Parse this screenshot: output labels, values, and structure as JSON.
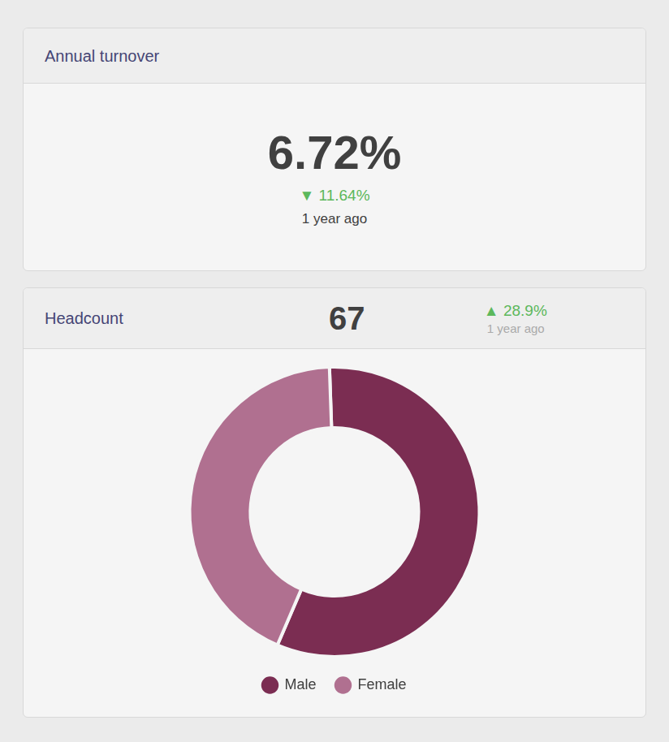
{
  "chart_data": {
    "type": "doughnut",
    "title": "Headcount",
    "categories": [
      "Male",
      "Female"
    ],
    "values": [
      57,
      43
    ],
    "colors": [
      "#7b2d52",
      "#b07090"
    ],
    "legend": "bottom",
    "annotations": [
      {
        "text": "Annual turnover"
      },
      {
        "text": "6.72%"
      },
      {
        "text": "▼ 11.64%",
        "color": "#5cb85c"
      },
      {
        "text": "1 year ago"
      },
      {
        "text": "67"
      },
      {
        "text": "▲ 28.9%",
        "color": "#5cb85c"
      },
      {
        "text": "1 year ago"
      }
    ]
  }
}
